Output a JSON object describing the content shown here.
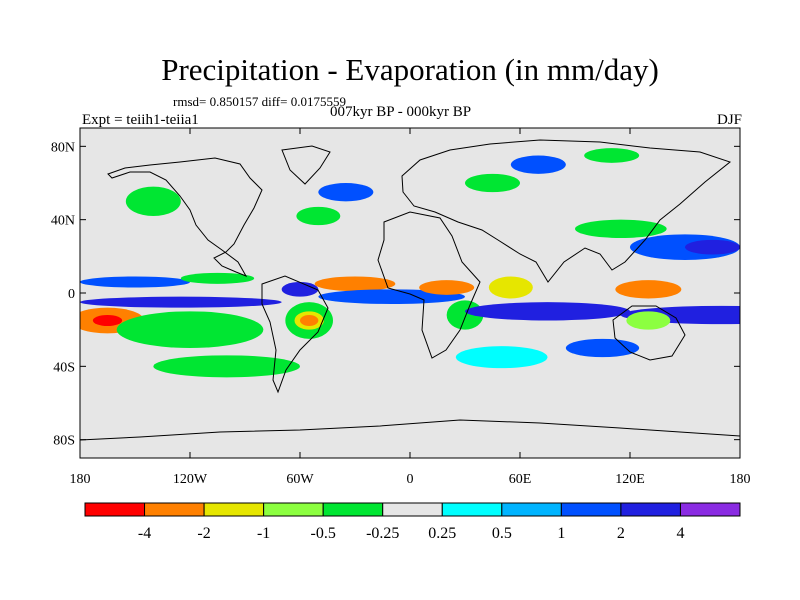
{
  "title": "Precipitation - Evaporation (in mm/day)",
  "stats": "rmsd= 0.850157 diff= 0.0175559",
  "period": "007kyr BP - 000kyr BP",
  "experiment": "Expt = teiih1-teiia1",
  "season": "DJF",
  "y_ticks": [
    {
      "label": "80N",
      "lat": 80
    },
    {
      "label": "40N",
      "lat": 40
    },
    {
      "label": "0",
      "lat": 0
    },
    {
      "label": "40S",
      "lat": -40
    },
    {
      "label": "80S",
      "lat": -80
    }
  ],
  "x_ticks": [
    {
      "label": "180",
      "lon": -180
    },
    {
      "label": "120W",
      "lon": -120
    },
    {
      "label": "60W",
      "lon": -60
    },
    {
      "label": "0",
      "lon": 0
    },
    {
      "label": "60E",
      "lon": 60
    },
    {
      "label": "120E",
      "lon": 120
    },
    {
      "label": "180",
      "lon": 180
    }
  ],
  "colorbar": {
    "colors": [
      "#ff0000",
      "#ff8000",
      "#e6e600",
      "#8cff40",
      "#00e632",
      "#e6e6e6",
      "#00ffff",
      "#00b4ff",
      "#0050ff",
      "#2020e0",
      "#8a2be2"
    ],
    "levels": [
      "-4",
      "-2",
      "-1",
      "-0.5",
      "-0.25",
      "0.25",
      "0.5",
      "1",
      "2",
      "4"
    ]
  },
  "colors": {
    "background": "#e6e6e6",
    "coast": "#000000"
  },
  "chart_data": {
    "type": "heatmap",
    "field": "precipitation minus evaporation anomaly",
    "units": "mm/day",
    "lon_range": [
      -180,
      180
    ],
    "lat_range": [
      -90,
      90
    ],
    "color_scale": "discrete",
    "regions": [
      {
        "lon": -165,
        "lat": -15,
        "rx": 20,
        "ry": 7,
        "value": -3
      },
      {
        "lon": -165,
        "lat": -15,
        "rx": 8,
        "ry": 3,
        "value": -5
      },
      {
        "lon": -120,
        "lat": -20,
        "rx": 40,
        "ry": 10,
        "value": -0.3
      },
      {
        "lon": -125,
        "lat": -5,
        "rx": 55,
        "ry": 3,
        "value": 2.5
      },
      {
        "lon": -150,
        "lat": 6,
        "rx": 30,
        "ry": 3,
        "value": 1.5
      },
      {
        "lon": -105,
        "lat": 8,
        "rx": 20,
        "ry": 3,
        "value": -0.5
      },
      {
        "lon": -55,
        "lat": -15,
        "rx": 13,
        "ry": 10,
        "value": -0.5
      },
      {
        "lon": -55,
        "lat": -15,
        "rx": 8,
        "ry": 5,
        "value": -1.5
      },
      {
        "lon": -55,
        "lat": -15,
        "rx": 5,
        "ry": 3,
        "value": -3
      },
      {
        "lon": -60,
        "lat": 2,
        "rx": 10,
        "ry": 4,
        "value": 2
      },
      {
        "lon": -30,
        "lat": 5,
        "rx": 22,
        "ry": 4,
        "value": -2.5
      },
      {
        "lon": -10,
        "lat": -2,
        "rx": 40,
        "ry": 4,
        "value": 1.5
      },
      {
        "lon": 20,
        "lat": 3,
        "rx": 15,
        "ry": 4,
        "value": -2.5
      },
      {
        "lon": 55,
        "lat": 3,
        "rx": 12,
        "ry": 6,
        "value": -2
      },
      {
        "lon": 30,
        "lat": -12,
        "rx": 10,
        "ry": 8,
        "value": -0.5
      },
      {
        "lon": 75,
        "lat": -10,
        "rx": 45,
        "ry": 5,
        "value": 3
      },
      {
        "lon": 170,
        "lat": -12,
        "rx": 55,
        "ry": 5,
        "value": 2.5
      },
      {
        "lon": 130,
        "lat": 2,
        "rx": 18,
        "ry": 5,
        "value": -3
      },
      {
        "lon": 130,
        "lat": -15,
        "rx": 12,
        "ry": 5,
        "value": -1
      },
      {
        "lon": 150,
        "lat": 25,
        "rx": 30,
        "ry": 7,
        "value": 1.5
      },
      {
        "lon": 165,
        "lat": 25,
        "rx": 15,
        "ry": 4,
        "value": 2.5
      },
      {
        "lon": 115,
        "lat": 35,
        "rx": 25,
        "ry": 5,
        "value": -0.5
      },
      {
        "lon": -140,
        "lat": 50,
        "rx": 15,
        "ry": 8,
        "value": -0.5
      },
      {
        "lon": -50,
        "lat": 42,
        "rx": 12,
        "ry": 5,
        "value": -0.5
      },
      {
        "lon": -35,
        "lat": 55,
        "rx": 15,
        "ry": 5,
        "value": 1.5
      },
      {
        "lon": 45,
        "lat": 60,
        "rx": 15,
        "ry": 5,
        "value": -0.5
      },
      {
        "lon": 70,
        "lat": 70,
        "rx": 15,
        "ry": 5,
        "value": 1
      },
      {
        "lon": 110,
        "lat": 75,
        "rx": 15,
        "ry": 4,
        "value": -0.5
      },
      {
        "lon": -100,
        "lat": -40,
        "rx": 40,
        "ry": 6,
        "value": -0.3
      },
      {
        "lon": 50,
        "lat": -35,
        "rx": 25,
        "ry": 6,
        "value": 0.3
      },
      {
        "lon": 105,
        "lat": -30,
        "rx": 20,
        "ry": 5,
        "value": 1
      }
    ]
  }
}
